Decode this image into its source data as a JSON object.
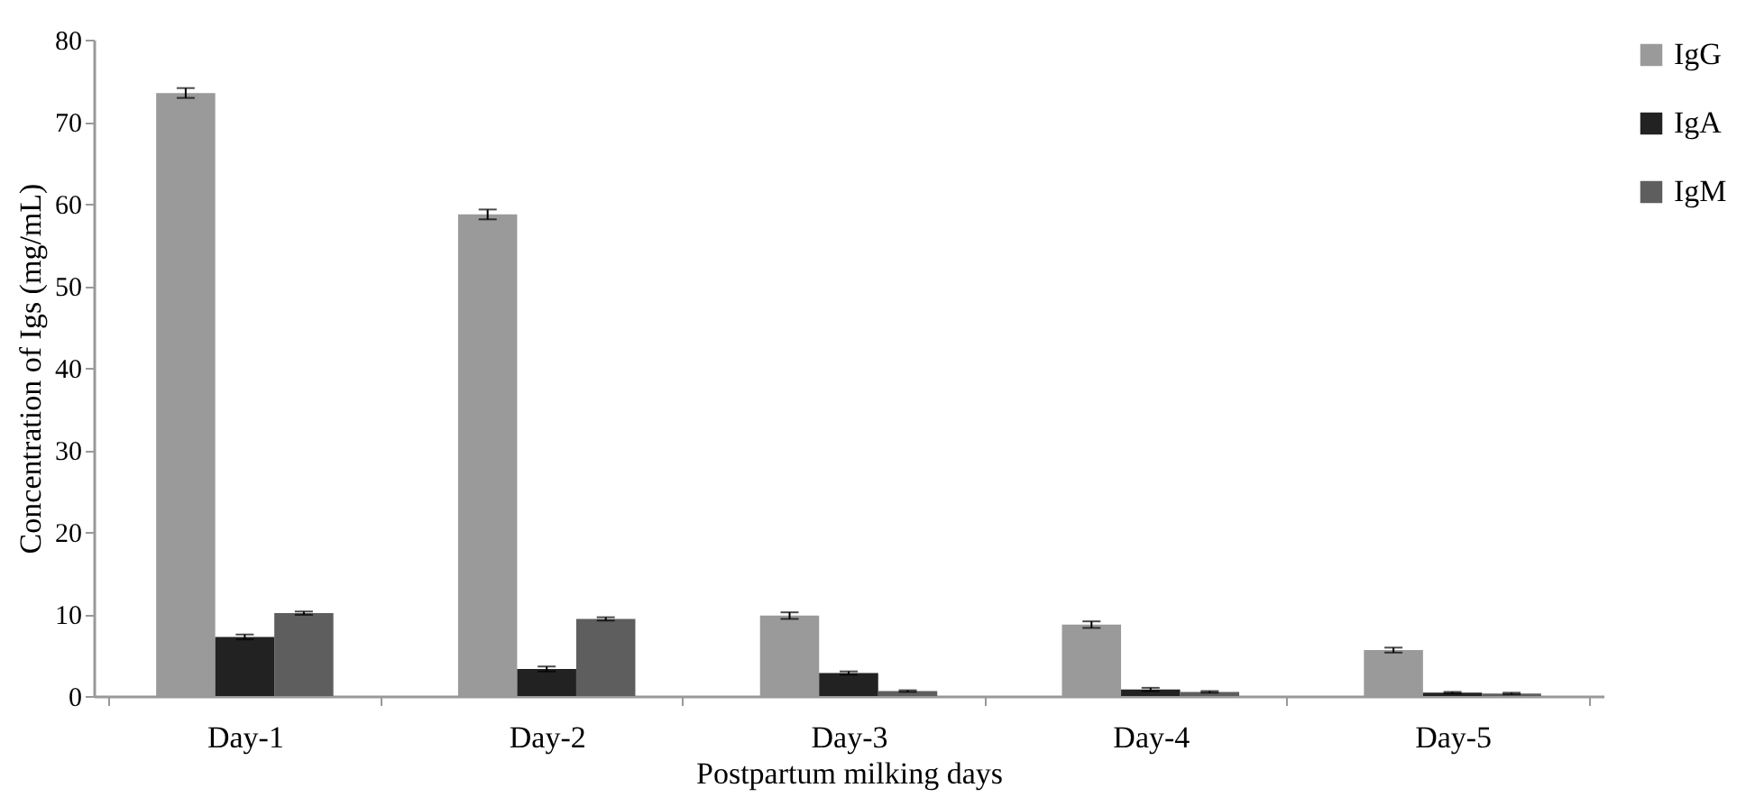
{
  "chart_data": {
    "type": "bar",
    "xlabel": "Postpartum milking days",
    "ylabel": "Concentration of Igs (mg/mL)",
    "categories": [
      "Day-1",
      "Day-2",
      "Day-3",
      "Day-4",
      "Day-5"
    ],
    "series": [
      {
        "name": "IgG",
        "color": "#9a9a9a",
        "values": [
          73.5,
          58.7,
          9.8,
          8.7,
          5.6
        ],
        "errors": [
          0.6,
          0.6,
          0.4,
          0.4,
          0.3
        ]
      },
      {
        "name": "IgA",
        "color": "#222222",
        "values": [
          7.2,
          3.3,
          2.8,
          0.8,
          0.4
        ],
        "errors": [
          0.3,
          0.3,
          0.2,
          0.2,
          0.1
        ]
      },
      {
        "name": "IgM",
        "color": "#5e5e5e",
        "values": [
          10.1,
          9.4,
          0.6,
          0.5,
          0.3
        ],
        "errors": [
          0.2,
          0.2,
          0.1,
          0.1,
          0.1
        ]
      }
    ],
    "ylim": [
      0,
      80
    ],
    "yticks": [
      0,
      10,
      20,
      30,
      40,
      50,
      60,
      70,
      80
    ],
    "grid": false,
    "legend": "right"
  }
}
